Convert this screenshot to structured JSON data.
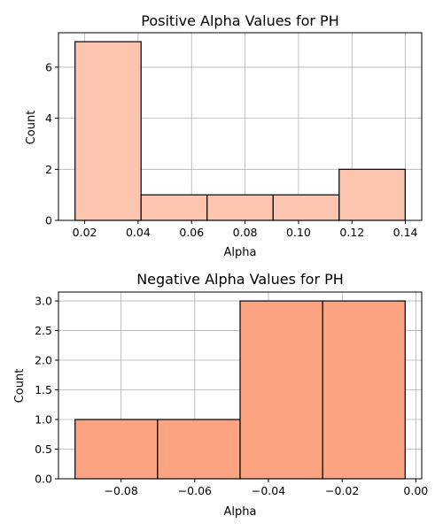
{
  "chart_data": [
    {
      "type": "histogram",
      "title": "Positive Alpha Values for PH",
      "xlabel": "Alpha",
      "ylabel": "Count",
      "bin_edges": [
        0.0164,
        0.0411,
        0.0658,
        0.0905,
        0.1152,
        0.1399
      ],
      "values": [
        7,
        1,
        1,
        1,
        2
      ],
      "xlim": [
        0.0102,
        0.1461
      ],
      "ylim": [
        0,
        7.35
      ],
      "xticks": [
        "0.02",
        "0.04",
        "0.06",
        "0.08",
        "0.10",
        "0.12",
        "0.14"
      ],
      "xtick_values": [
        0.02,
        0.04,
        0.06,
        0.08,
        0.1,
        0.12,
        0.14
      ],
      "yticks": [
        "0",
        "2",
        "4",
        "6"
      ],
      "ytick_values": [
        0,
        2,
        4,
        6
      ],
      "bar_color": "#fcc5b0",
      "edge_color": "#000000",
      "grid": true
    },
    {
      "type": "histogram",
      "title": "Negative Alpha Values for PH",
      "xlabel": "Alpha",
      "ylabel": "Count",
      "bin_edges": [
        -0.0925,
        -0.0701,
        -0.0477,
        -0.0253,
        -0.0029
      ],
      "values": [
        1,
        1,
        3,
        3
      ],
      "xlim": [
        -0.097,
        0.0016
      ],
      "ylim": [
        0,
        3.15
      ],
      "xticks": [
        "−0.08",
        "−0.06",
        "−0.04",
        "−0.02",
        "0.00"
      ],
      "xtick_values": [
        -0.08,
        -0.06,
        -0.04,
        -0.02,
        0.0
      ],
      "yticks": [
        "0.0",
        "0.5",
        "1.0",
        "1.5",
        "2.0",
        "2.5",
        "3.0"
      ],
      "ytick_values": [
        0,
        0.5,
        1.0,
        1.5,
        2.0,
        2.5,
        3.0
      ],
      "bar_color": "#fca382",
      "edge_color": "#000000",
      "grid": true
    }
  ],
  "colors": {
    "grid": "#b0b0b0",
    "axes": "#000000",
    "background": "#ffffff"
  }
}
